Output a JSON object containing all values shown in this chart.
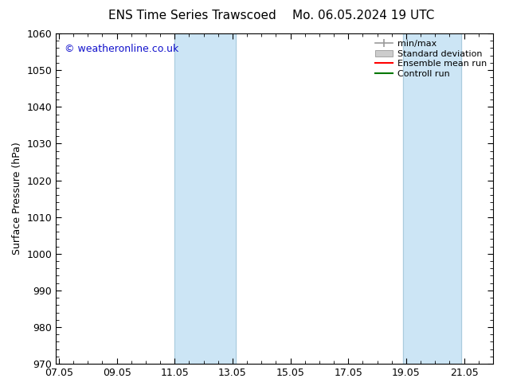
{
  "title_left": "ENS Time Series Trawscoed",
  "title_right": "Mo. 06.05.2024 19 UTC",
  "ylabel": "Surface Pressure (hPa)",
  "ylim": [
    970,
    1060
  ],
  "yticks": [
    970,
    980,
    990,
    1000,
    1010,
    1020,
    1030,
    1040,
    1050,
    1060
  ],
  "xtick_labels": [
    "07.05",
    "09.05",
    "11.05",
    "13.05",
    "15.05",
    "17.05",
    "19.05",
    "21.05"
  ],
  "xtick_positions": [
    0,
    2,
    4,
    6,
    8,
    10,
    12,
    14
  ],
  "xlim": [
    -0.1,
    15.0
  ],
  "shaded_bands": [
    {
      "xmin": 4.0,
      "xmax": 6.1
    },
    {
      "xmin": 11.9,
      "xmax": 13.9
    }
  ],
  "shade_color": "#cce5f5",
  "shade_alpha": 1.0,
  "band_edge_color": "#aaccdd",
  "band_edge_lw": 0.8,
  "copyright_text": "© weatheronline.co.uk",
  "copyright_color": "#1111cc",
  "copyright_fontsize": 9,
  "legend_items": [
    {
      "label": "min/max",
      "color": "#999999",
      "lw": 1.2
    },
    {
      "label": "Standard deviation",
      "color": "#cccccc",
      "lw": 8
    },
    {
      "label": "Ensemble mean run",
      "color": "#ff0000",
      "lw": 1.5
    },
    {
      "label": "Controll run",
      "color": "#007700",
      "lw": 1.5
    }
  ],
  "background_color": "#ffffff",
  "title_fontsize": 11,
  "axis_label_fontsize": 9,
  "tick_fontsize": 9,
  "legend_fontsize": 8
}
